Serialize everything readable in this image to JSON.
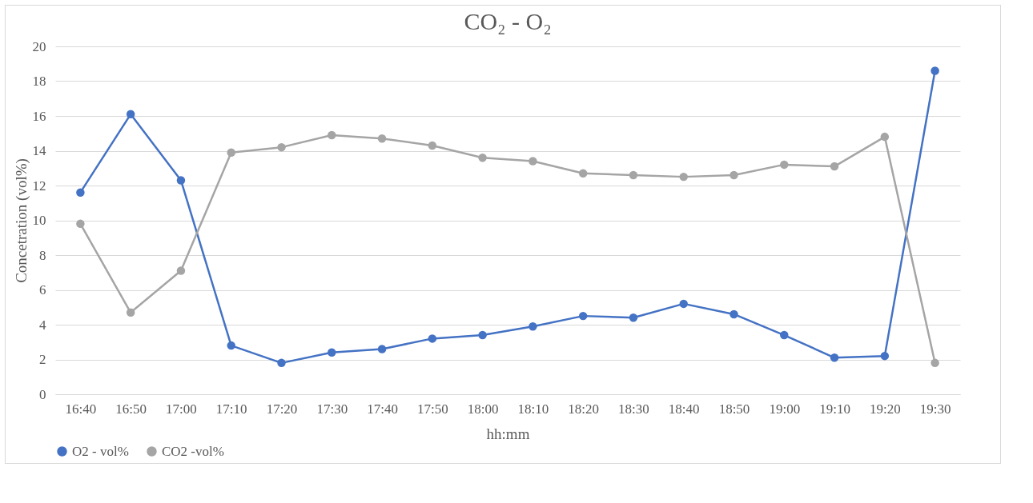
{
  "chart_data": {
    "type": "line",
    "title": "CO₂ - O₂",
    "xlabel": "hh:mm",
    "ylabel": "Concetration (vol%)",
    "categories": [
      "16:40",
      "16:50",
      "17:00",
      "17:10",
      "17:20",
      "17:30",
      "17:40",
      "17:50",
      "18:00",
      "18:10",
      "18:20",
      "18:30",
      "18:40",
      "18:50",
      "19:00",
      "19:10",
      "19:20",
      "19:30"
    ],
    "series": [
      {
        "name": "O2 - vol%",
        "color": "#4472c4",
        "values": [
          11.6,
          16.1,
          12.3,
          2.8,
          1.8,
          2.4,
          2.6,
          3.2,
          3.4,
          3.9,
          4.5,
          4.4,
          5.2,
          4.6,
          3.4,
          2.1,
          2.2,
          18.6
        ]
      },
      {
        "name": "CO2 -vol%",
        "color": "#a5a5a5",
        "values": [
          9.8,
          4.7,
          7.1,
          13.9,
          14.2,
          14.9,
          14.7,
          14.3,
          13.6,
          13.4,
          12.7,
          12.6,
          12.5,
          12.6,
          13.2,
          13.1,
          14.8,
          1.8
        ]
      }
    ],
    "ylim": [
      0,
      20
    ],
    "yticks": [
      0,
      2,
      4,
      6,
      8,
      10,
      12,
      14,
      16,
      18,
      20
    ],
    "grid": "y",
    "legend": "bottom",
    "marker": "circle",
    "line_style": "solid"
  }
}
